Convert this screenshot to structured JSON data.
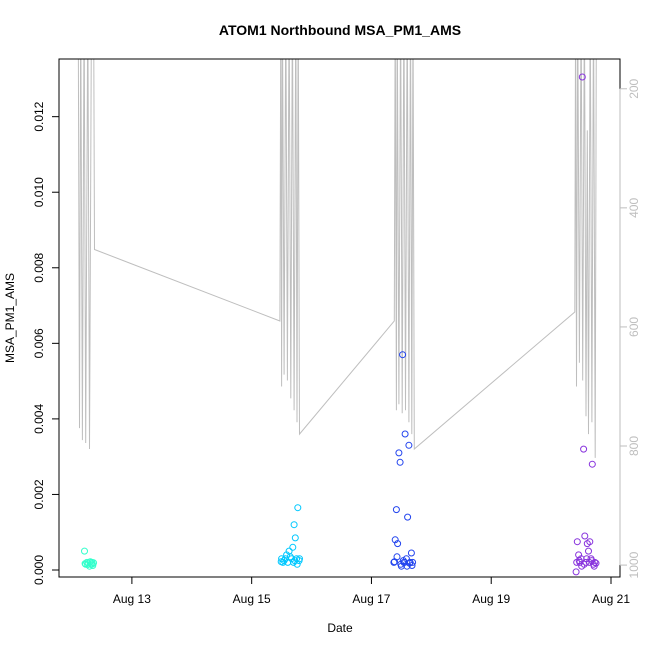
{
  "chart_data": {
    "type": "scatter",
    "title": "ATOM1 Northbound MSA_PM1_AMS",
    "xlabel": "Date",
    "ylabel": "MSA_PM1_AMS",
    "x_axis": {
      "unit": "date",
      "range": [
        "2011-08-12",
        "2011-08-21"
      ],
      "ticks": [
        {
          "date": "2011-08-13",
          "label": "Aug 13"
        },
        {
          "date": "2011-08-15",
          "label": "Aug 15"
        },
        {
          "date": "2011-08-17",
          "label": "Aug 17"
        },
        {
          "date": "2011-08-19",
          "label": "Aug 19"
        },
        {
          "date": "2011-08-21",
          "label": "Aug 21"
        }
      ]
    },
    "y_left": {
      "range": [
        0.0,
        0.0135
      ],
      "ticks": [
        0.0,
        0.002,
        0.004,
        0.006,
        0.008,
        0.01,
        0.012
      ],
      "tick_labels": [
        "0.000",
        "0.002",
        "0.004",
        "0.006",
        "0.008",
        "0.010",
        "0.012"
      ]
    },
    "y_right": {
      "range": [
        1020,
        150
      ],
      "reversed": true,
      "ticks": [
        200,
        400,
        600,
        800,
        1000
      ],
      "tick_labels": [
        "200",
        "400",
        "600",
        "800",
        "1000"
      ],
      "color": "#bebebe"
    },
    "series": [
      {
        "color": "#33ffcc",
        "marker": "open-circle",
        "x": [
          "2011-08-12T05:00",
          "2011-08-12T05:30",
          "2011-08-12T06:00",
          "2011-08-12T06:30",
          "2011-08-12T07:00",
          "2011-08-12T07:20",
          "2011-08-12T07:40",
          "2011-08-12T08:00",
          "2011-08-12T08:20",
          "2011-08-12T08:40",
          "2011-08-12T05:15",
          "2011-08-12T06:15",
          "2011-08-12T07:10",
          "2011-08-12T08:10"
        ],
        "y": [
          0.0005,
          0.00015,
          0.0002,
          0.00018,
          0.0001,
          0.00022,
          0.00016,
          0.0002,
          0.00012,
          0.00019,
          0.00017,
          0.00014,
          0.00021,
          0.00016
        ]
      },
      {
        "color": "#00c8ff",
        "marker": "open-circle",
        "x": [
          "2011-08-15T12:00",
          "2011-08-15T13:00",
          "2011-08-15T14:00",
          "2011-08-15T15:00",
          "2011-08-15T16:00",
          "2011-08-15T16:30",
          "2011-08-15T17:00",
          "2011-08-15T17:30",
          "2011-08-15T18:00",
          "2011-08-15T18:30",
          "2011-08-15T19:00",
          "2011-08-15T12:30",
          "2011-08-15T13:30",
          "2011-08-15T14:30",
          "2011-08-15T15:30",
          "2011-08-15T17:15",
          "2011-08-15T18:15",
          "2011-08-15T19:10",
          "2011-08-15T11:50",
          "2011-08-15T16:45"
        ],
        "y": [
          0.0003,
          0.00025,
          0.0004,
          0.0005,
          0.0003,
          0.0006,
          0.0012,
          0.00085,
          0.0003,
          0.00165,
          0.00025,
          0.0002,
          0.0003,
          0.0002,
          0.00035,
          0.00025,
          0.00015,
          0.0003,
          0.00022,
          0.0002
        ]
      },
      {
        "color": "#2244ee",
        "marker": "open-circle",
        "x": [
          "2011-08-17T09:00",
          "2011-08-17T09:30",
          "2011-08-17T10:00",
          "2011-08-17T10:30",
          "2011-08-17T11:00",
          "2011-08-17T11:30",
          "2011-08-17T12:00",
          "2011-08-17T12:30",
          "2011-08-17T13:00",
          "2011-08-17T13:30",
          "2011-08-17T14:00",
          "2011-08-17T14:30",
          "2011-08-17T15:00",
          "2011-08-17T15:30",
          "2011-08-17T16:00",
          "2011-08-17T16:30",
          "2011-08-17T10:15",
          "2011-08-17T11:45",
          "2011-08-17T12:45",
          "2011-08-17T13:15",
          "2011-08-17T14:15",
          "2011-08-17T15:15",
          "2011-08-17T09:15",
          "2011-08-17T16:15"
        ],
        "y": [
          0.0002,
          0.0008,
          0.0016,
          0.0007,
          0.0031,
          0.00285,
          0.0001,
          0.0057,
          0.0002,
          0.0036,
          0.0003,
          0.0014,
          0.0033,
          0.0002,
          0.00045,
          0.0002,
          0.00035,
          0.00015,
          0.00025,
          0.0002,
          0.0001,
          0.00018,
          0.00022,
          0.00012
        ]
      },
      {
        "color": "#8833dd",
        "marker": "open-circle",
        "x": [
          "2011-08-20T10:00",
          "2011-08-20T10:30",
          "2011-08-20T11:00",
          "2011-08-20T11:30",
          "2011-08-20T12:00",
          "2011-08-20T12:30",
          "2011-08-20T13:00",
          "2011-08-20T13:30",
          "2011-08-20T14:00",
          "2011-08-20T14:30",
          "2011-08-20T15:00",
          "2011-08-20T15:30",
          "2011-08-20T16:00",
          "2011-08-20T16:30",
          "2011-08-20T17:00",
          "2011-08-20T17:30",
          "2011-08-20T18:00",
          "2011-08-20T10:15",
          "2011-08-20T11:15",
          "2011-08-20T12:15",
          "2011-08-20T13:15",
          "2011-08-20T14:15",
          "2011-08-20T15:15",
          "2011-08-20T16:15",
          "2011-08-20T17:15"
        ],
        "y": [
          -5e-05,
          0.00075,
          0.0004,
          0.0002,
          0.0003,
          0.01305,
          0.0032,
          0.0009,
          0.0002,
          0.0007,
          0.0005,
          0.00075,
          0.0003,
          0.0028,
          0.00015,
          0.0002,
          0.00018,
          0.0002,
          0.00025,
          0.0001,
          0.00015,
          0.0003,
          0.0002,
          0.00025,
          0.0001
        ]
      }
    ],
    "line_series": {
      "color": "#bebebe",
      "axis": "right",
      "points": [
        [
          "2011-08-12T02:30",
          50
        ],
        [
          "2011-08-12T03:00",
          770
        ],
        [
          "2011-08-12T03:30",
          50
        ],
        [
          "2011-08-12T04:10",
          790
        ],
        [
          "2011-08-12T04:50",
          50
        ],
        [
          "2011-08-12T05:30",
          795
        ],
        [
          "2011-08-12T06:20",
          50
        ],
        [
          "2011-08-12T07:00",
          805
        ],
        [
          "2011-08-12T07:50",
          50
        ],
        [
          "2011-08-12T08:40",
          50
        ],
        [
          "2011-08-12T09:00",
          470
        ],
        [
          "2011-08-15T11:20",
          590
        ],
        [
          "2011-08-15T11:40",
          50
        ],
        [
          "2011-08-15T12:00",
          700
        ],
        [
          "2011-08-15T12:20",
          50
        ],
        [
          "2011-08-15T13:00",
          680
        ],
        [
          "2011-08-15T13:40",
          50
        ],
        [
          "2011-08-15T14:20",
          690
        ],
        [
          "2011-08-15T15:00",
          50
        ],
        [
          "2011-08-15T15:40",
          720
        ],
        [
          "2011-08-15T16:20",
          50
        ],
        [
          "2011-08-15T17:00",
          740
        ],
        [
          "2011-08-15T17:40",
          50
        ],
        [
          "2011-08-15T18:10",
          760
        ],
        [
          "2011-08-15T18:40",
          50
        ],
        [
          "2011-08-15T19:10",
          780
        ],
        [
          "2011-08-17T09:10",
          590
        ],
        [
          "2011-08-17T09:30",
          50
        ],
        [
          "2011-08-17T10:00",
          740
        ],
        [
          "2011-08-17T10:20",
          50
        ],
        [
          "2011-08-17T11:00",
          730
        ],
        [
          "2011-08-17T11:40",
          50
        ],
        [
          "2011-08-17T12:20",
          745
        ],
        [
          "2011-08-17T13:00",
          50
        ],
        [
          "2011-08-17T13:40",
          740
        ],
        [
          "2011-08-17T14:20",
          50
        ],
        [
          "2011-08-17T15:00",
          760
        ],
        [
          "2011-08-17T15:40",
          50
        ],
        [
          "2011-08-17T16:10",
          780
        ],
        [
          "2011-08-17T16:40",
          50
        ],
        [
          "2011-08-17T17:10",
          805
        ],
        [
          "2011-08-20T09:30",
          575
        ],
        [
          "2011-08-20T09:50",
          50
        ],
        [
          "2011-08-20T10:10",
          700
        ],
        [
          "2011-08-20T10:40",
          50
        ],
        [
          "2011-08-20T11:20",
          660
        ],
        [
          "2011-08-20T12:00",
          50
        ],
        [
          "2011-08-20T12:40",
          690
        ],
        [
          "2011-08-20T13:20",
          50
        ],
        [
          "2011-08-20T14:00",
          750
        ],
        [
          "2011-08-20T14:30",
          270
        ],
        [
          "2011-08-20T15:00",
          780
        ],
        [
          "2011-08-20T15:40",
          50
        ],
        [
          "2011-08-20T16:20",
          760
        ],
        [
          "2011-08-20T17:00",
          50
        ],
        [
          "2011-08-20T17:40",
          820
        ],
        [
          "2011-08-20T18:10",
          50
        ]
      ]
    },
    "grid": false,
    "legend": "none"
  }
}
